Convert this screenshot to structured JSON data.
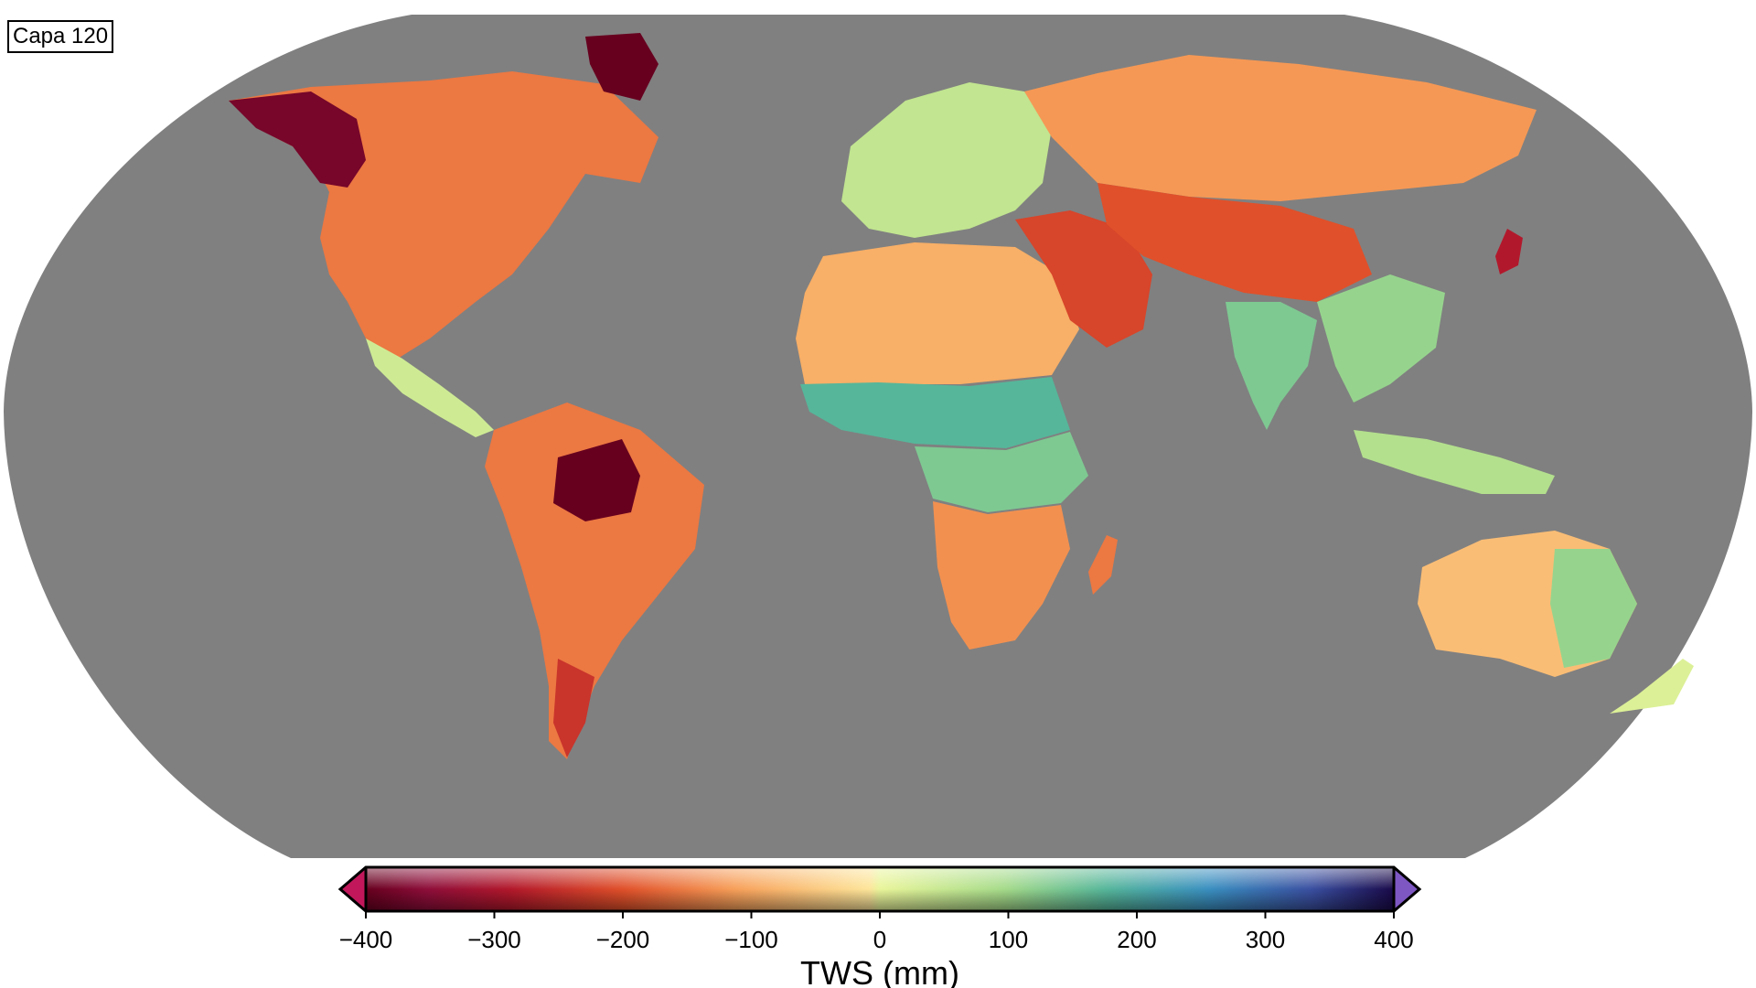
{
  "map": {
    "layer_label": "Capa 120",
    "projection": "robinson",
    "ocean_color": "#808080",
    "regions": [
      {
        "name": "north-america",
        "mean_value": -150
      },
      {
        "name": "alaska-canada-west",
        "mean_value": -380
      },
      {
        "name": "canadian-arctic",
        "mean_value": -400
      },
      {
        "name": "central-america",
        "mean_value": 40
      },
      {
        "name": "amazon",
        "mean_value": -400
      },
      {
        "name": "south-america",
        "mean_value": -150
      },
      {
        "name": "patagonia",
        "mean_value": -250
      },
      {
        "name": "north-africa",
        "mean_value": -80
      },
      {
        "name": "sahel",
        "mean_value": 200
      },
      {
        "name": "central-africa",
        "mean_value": 150
      },
      {
        "name": "southern-africa",
        "mean_value": -120
      },
      {
        "name": "madagascar",
        "mean_value": -150
      },
      {
        "name": "europe",
        "mean_value": 60
      },
      {
        "name": "middle-east",
        "mean_value": -220
      },
      {
        "name": "russia-siberia",
        "mean_value": -110
      },
      {
        "name": "central-asia",
        "mean_value": -200
      },
      {
        "name": "india",
        "mean_value": 150
      },
      {
        "name": "southeast-asia",
        "mean_value": 120
      },
      {
        "name": "japan",
        "mean_value": -300
      },
      {
        "name": "indonesia",
        "mean_value": 80
      },
      {
        "name": "australia",
        "mean_value": -60
      },
      {
        "name": "australia-east",
        "mean_value": 120
      },
      {
        "name": "new-zealand",
        "mean_value": 20
      }
    ]
  },
  "colorbar": {
    "title": "TWS (mm)",
    "min": -400,
    "max": 400,
    "ticks": [
      "−400",
      "−300",
      "−200",
      "−100",
      "0",
      "100",
      "200",
      "300",
      "400"
    ],
    "extend": "both",
    "colormap": "spectral-diverging",
    "color_under": "#c2185b",
    "color_over": "#7e57c2"
  }
}
